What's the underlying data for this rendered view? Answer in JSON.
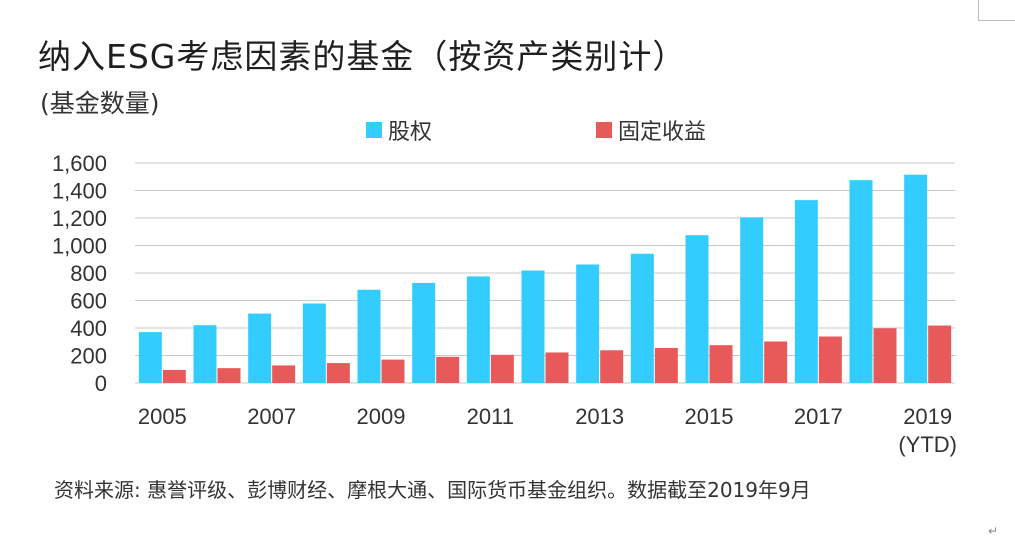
{
  "header": {
    "title": "纳入ESG考虑因素的基金（按资产类别计）",
    "subtitle": "(基金数量)"
  },
  "footer": {
    "source": "资料来源: 惠誉评级、彭博财经、摩根大通、国际货币基金组织。数据截至2019年9月",
    "paragraph_mark": "↵"
  },
  "colors": {
    "equity": "#33ccff",
    "fixed_income": "#e85a5a",
    "grid": "#c8c8c8"
  },
  "chart_data": {
    "type": "bar",
    "title": "纳入ESG考虑因素的基金（按资产类别计）",
    "ylabel": "(基金数量)",
    "xlabel": "",
    "ylim": [
      0,
      1600
    ],
    "yticks": [
      0,
      200,
      400,
      600,
      800,
      1000,
      1200,
      1400,
      1600
    ],
    "ytick_labels": [
      "0",
      "200",
      "400",
      "600",
      "800",
      "1,000",
      "1,200",
      "1,400",
      "1,600"
    ],
    "categories": [
      "2005",
      "2006",
      "2007",
      "2008",
      "2009",
      "2010",
      "2011",
      "2012",
      "2013",
      "2014",
      "2015",
      "2016",
      "2017",
      "2018",
      "2019 (YTD)"
    ],
    "xtick_labels": [
      {
        "index": 0,
        "lines": [
          "2005"
        ]
      },
      {
        "index": 2,
        "lines": [
          "2007"
        ]
      },
      {
        "index": 4,
        "lines": [
          "2009"
        ]
      },
      {
        "index": 6,
        "lines": [
          "2011"
        ]
      },
      {
        "index": 8,
        "lines": [
          "2013"
        ]
      },
      {
        "index": 10,
        "lines": [
          "2015"
        ]
      },
      {
        "index": 12,
        "lines": [
          "2017"
        ]
      },
      {
        "index": 14,
        "lines": [
          "2019",
          "(YTD)"
        ]
      }
    ],
    "series": [
      {
        "name": "股权",
        "color": "#33ccff",
        "values": [
          370,
          420,
          505,
          578,
          678,
          728,
          775,
          818,
          862,
          940,
          1075,
          1205,
          1330,
          1475,
          1515
        ]
      },
      {
        "name": "固定收益",
        "color": "#e85a5a",
        "values": [
          95,
          108,
          128,
          145,
          170,
          190,
          205,
          222,
          238,
          255,
          275,
          302,
          338,
          398,
          418
        ]
      }
    ],
    "legend": "top-center",
    "grid": true
  }
}
